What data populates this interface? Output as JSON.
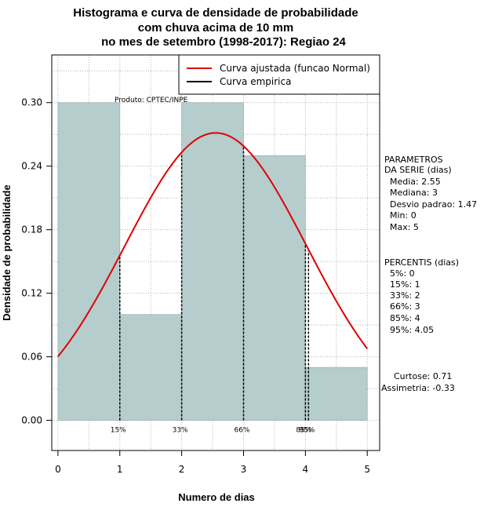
{
  "chart_data": {
    "type": "bar",
    "title_lines": [
      "Histograma e curva de densidade de probabilidade",
      "com chuva acima de 10 mm",
      "no mes de setembro (1998-2017): Regiao 24"
    ],
    "xlabel": "Numero de dias",
    "ylabel": "Densidade de probabilidade",
    "xlim": [
      -0.1,
      5.2
    ],
    "ylim": [
      -0.0285,
      0.345
    ],
    "x_ticks": [
      "0",
      "1",
      "2",
      "3",
      "4",
      "5"
    ],
    "y_ticks": [
      "0.00",
      "0.06",
      "0.12",
      "0.18",
      "0.24",
      "0.30"
    ],
    "bins": [
      {
        "from": 0,
        "to": 1,
        "density": 0.3
      },
      {
        "from": 1,
        "to": 2,
        "density": 0.1
      },
      {
        "from": 2,
        "to": 3,
        "density": 0.3
      },
      {
        "from": 3,
        "to": 4,
        "density": 0.25
      },
      {
        "from": 4,
        "to": 5,
        "density": 0.05
      }
    ],
    "normal_curve": {
      "mean": 2.55,
      "sd": 1.47,
      "from": 0,
      "to": 5
    },
    "percentile_lines": [
      {
        "label": "15%",
        "x": 1
      },
      {
        "label": "33%",
        "x": 2
      },
      {
        "label": "66%",
        "x": 3
      },
      {
        "label": "85%",
        "x": 4
      },
      {
        "label": "95%",
        "x": 4.05
      }
    ],
    "legend": {
      "position": "top-right",
      "entries": [
        {
          "label": "Curva ajustada (funcao Normal)",
          "color": "#e00000"
        },
        {
          "label": "Curva empirica",
          "color": "#000000"
        }
      ]
    },
    "producer_note": "Produto: CPTEC/INPE",
    "grid": true
  },
  "parameters": {
    "lines": [
      "PARAMETROS",
      "DA SERIE (dias)",
      "  Media: 2.55",
      "  Mediana: 3",
      "  Desvio padrao: 1.47",
      "  Min: 0",
      "  Max: 5"
    ]
  },
  "percentiles": {
    "lines": [
      "PERCENTIS (dias)",
      "  5%: 0",
      "  15%: 1",
      "  33%: 2",
      "  66%: 3",
      "  85%: 4",
      "  95%: 4.05"
    ]
  },
  "shape_stats": {
    "kurtosis": "Curtose: 0.71",
    "skewness": "Assimetria: -0.33"
  },
  "colors": {
    "bar_fill": "#b5cdcd",
    "curve": "#e00000",
    "grid": "#b0b0b0"
  }
}
